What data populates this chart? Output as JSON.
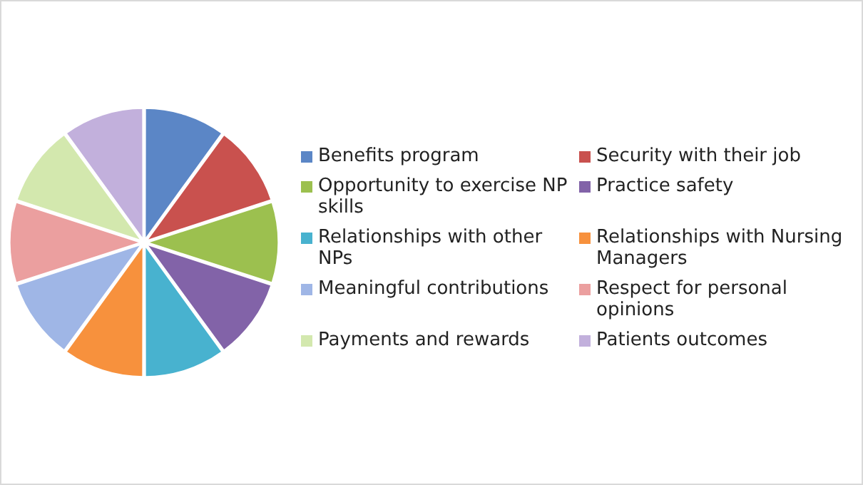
{
  "chart_data": {
    "type": "pie",
    "categories": [
      "Benefits program",
      "Security with their job",
      "Opportunity to exercise NP skills",
      "Practice safety",
      "Relationships with other NPs",
      "Relationships with Nursing Managers",
      "Meaningful contributions",
      "Respect for personal opinions",
      "Payments and rewards",
      "Patients outcomes"
    ],
    "values": [
      10,
      10,
      10,
      10,
      10,
      10,
      10,
      10,
      10,
      10
    ],
    "colors": [
      "#5b86c6",
      "#c9514e",
      "#9cc04f",
      "#8263a8",
      "#48b2cf",
      "#f7913d",
      "#9fb6e6",
      "#eb9f9f",
      "#d3e8ae",
      "#c2b0dc"
    ],
    "legend": "right"
  }
}
